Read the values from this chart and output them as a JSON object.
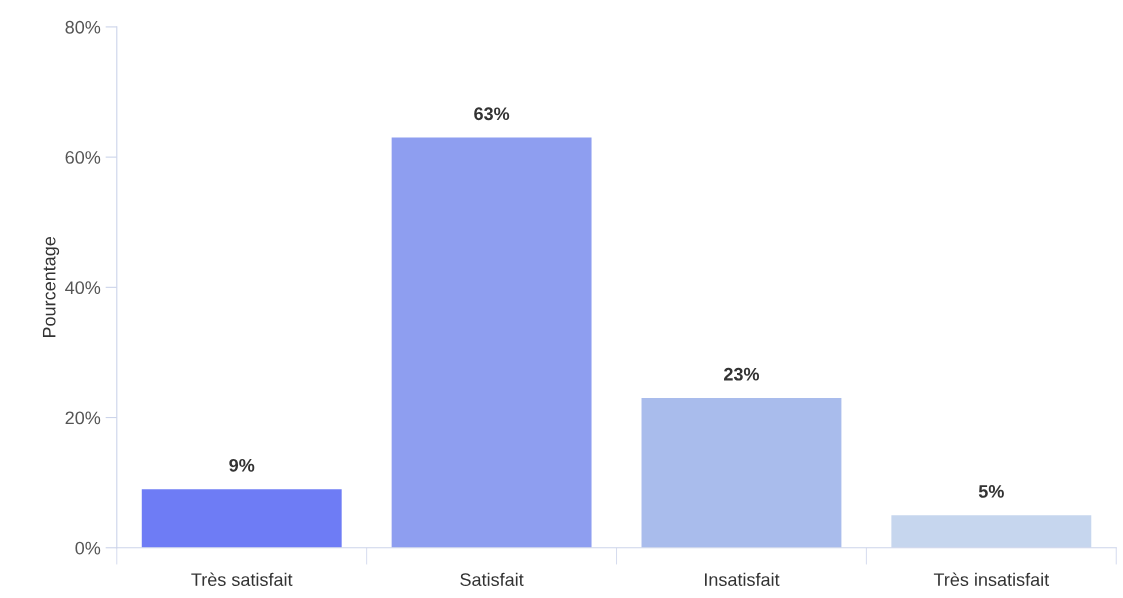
{
  "chart_data": {
    "type": "bar",
    "ylabel": "Pourcentage",
    "categories": [
      "Très satisfait",
      "Satisfait",
      "Insatisfait",
      "Très insatisfait"
    ],
    "values": [
      9,
      63,
      23,
      5
    ],
    "colors": [
      "#6e7cf5",
      "#8e9ef0",
      "#a9bcec",
      "#c6d6ee"
    ],
    "value_labels": [
      "9%",
      "63%",
      "23%",
      "5%"
    ],
    "ylim": [
      0,
      80
    ],
    "yticks": [
      {
        "value": 0,
        "label": "0%"
      },
      {
        "value": 20,
        "label": "20%"
      },
      {
        "value": 40,
        "label": "40%"
      },
      {
        "value": 60,
        "label": "60%"
      },
      {
        "value": 80,
        "label": "80%"
      }
    ],
    "grid": false
  }
}
